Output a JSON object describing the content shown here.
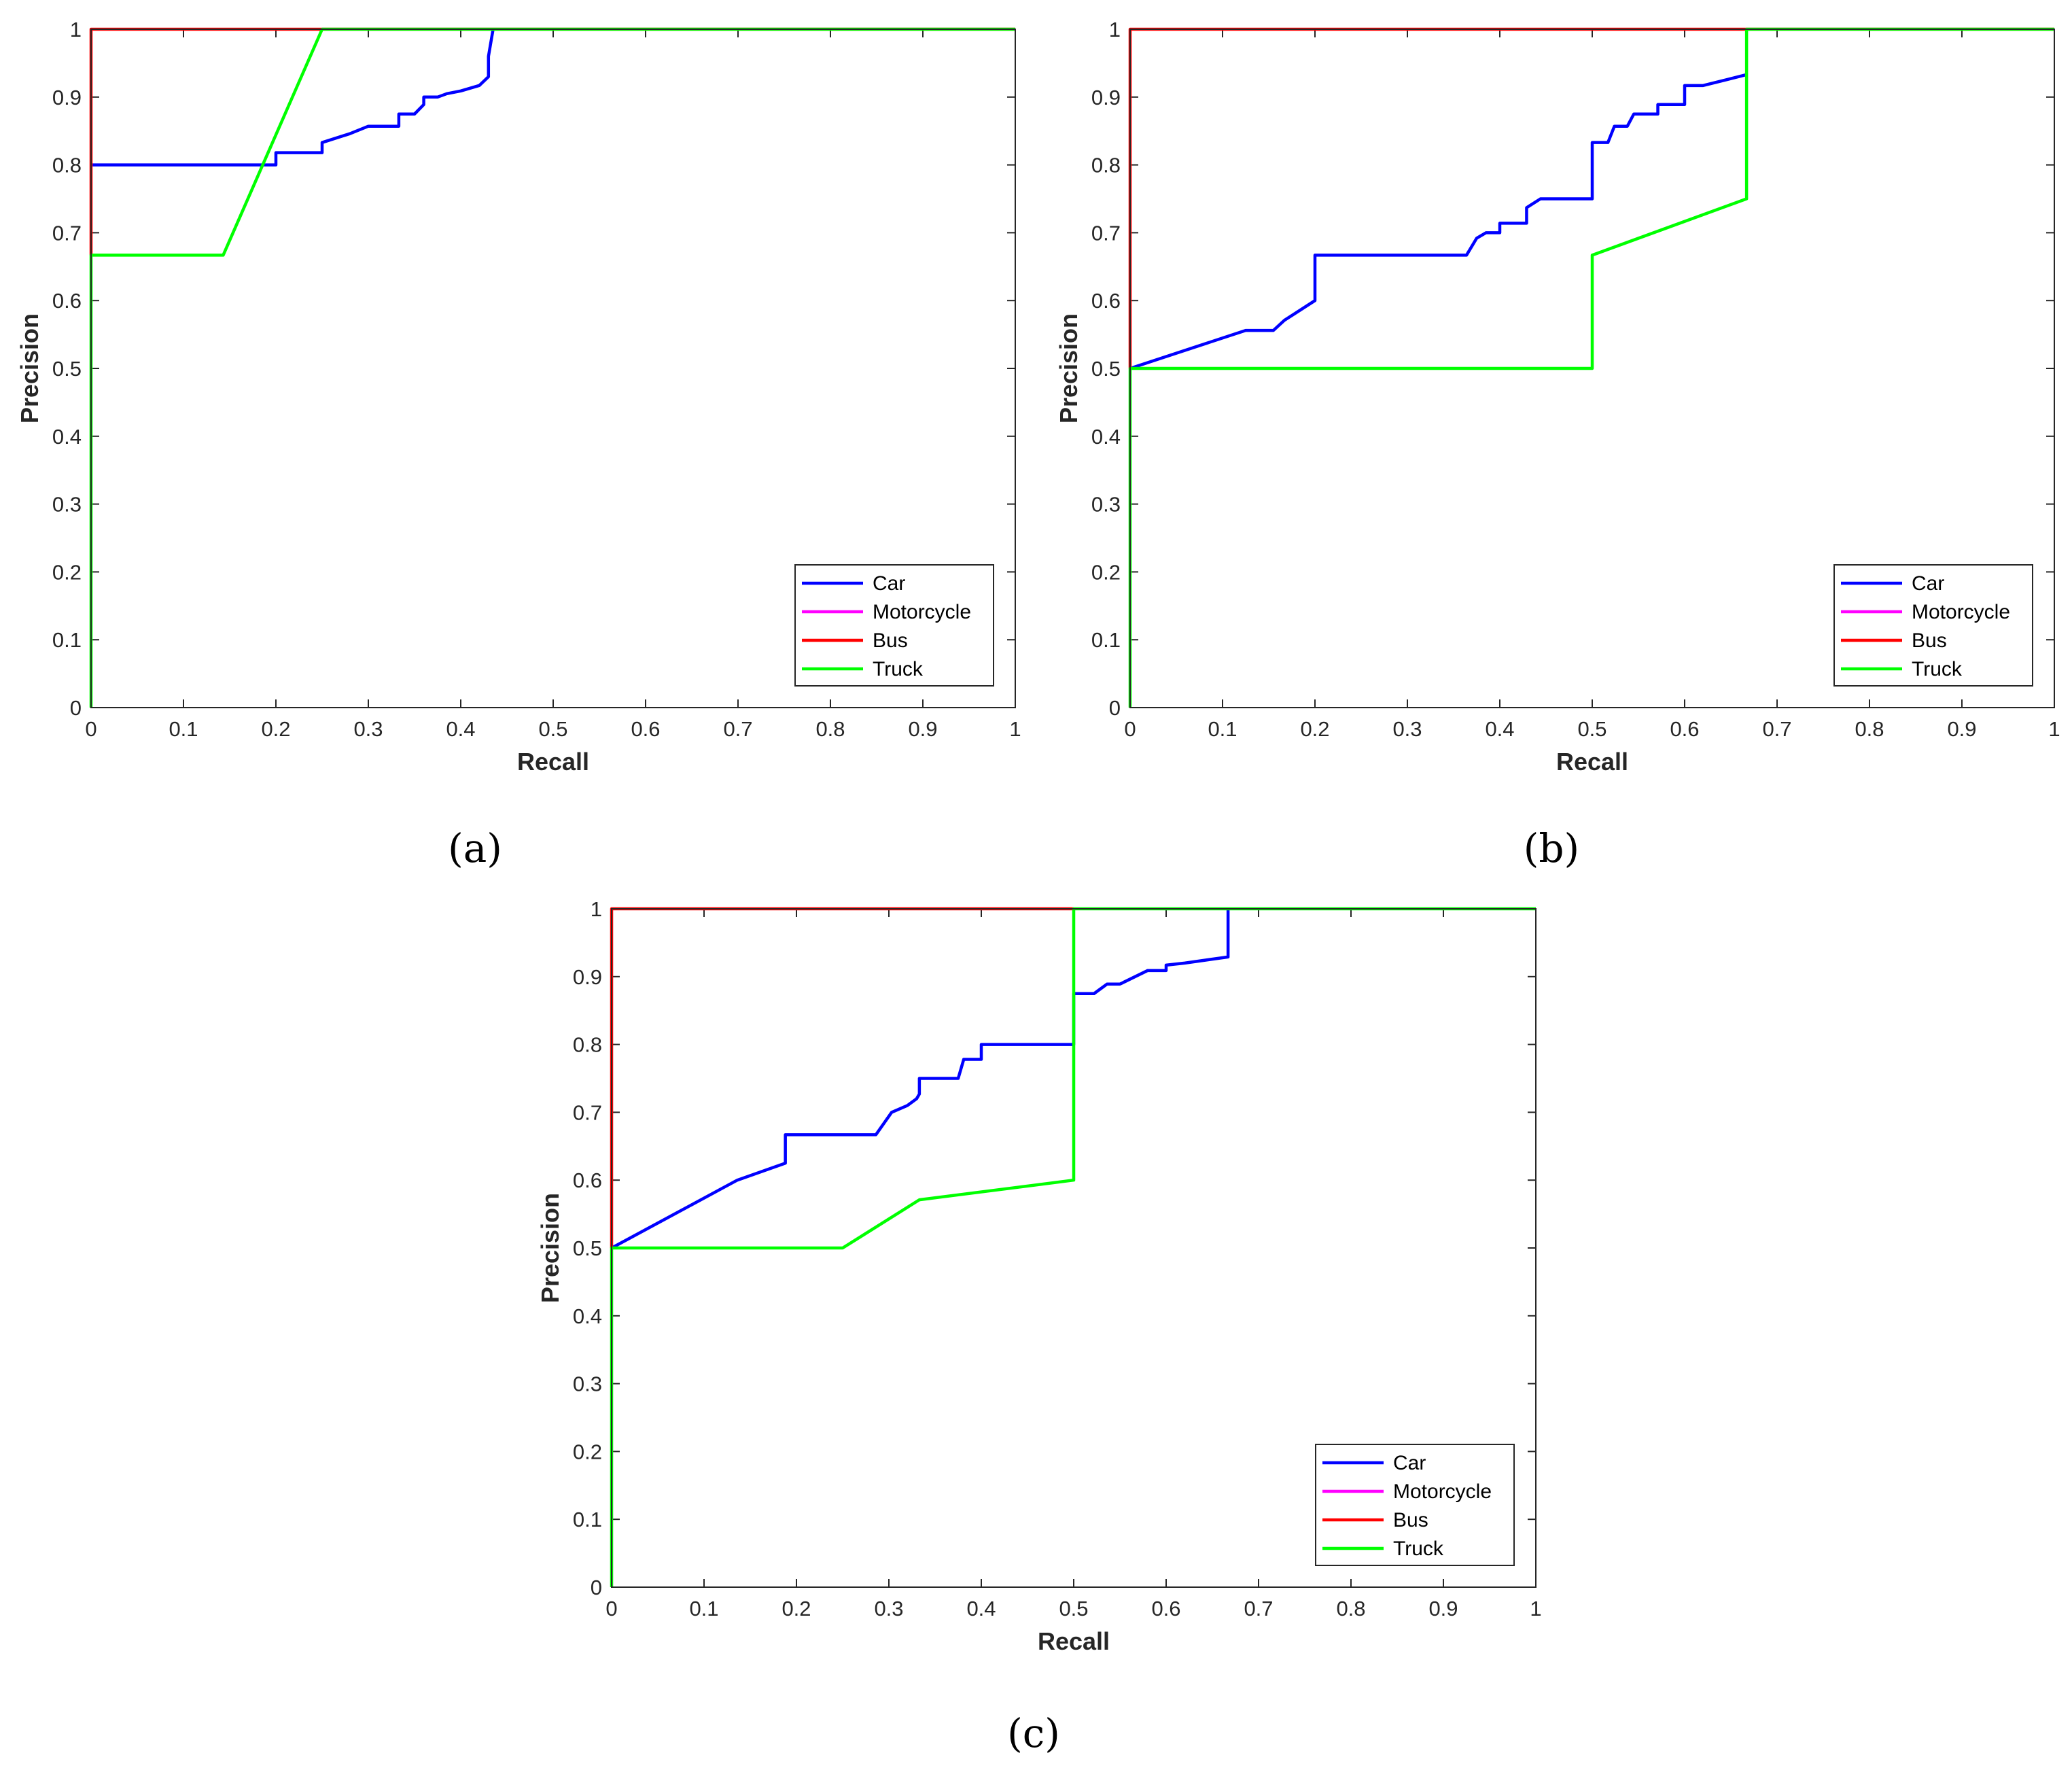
{
  "figure": {
    "panel_labels": [
      "(a)",
      "(b)",
      "(c)"
    ]
  },
  "chart_data": [
    {
      "type": "line",
      "panel": "(a)",
      "title": "",
      "xlabel": "Recall",
      "ylabel": "Precision",
      "xlim": [
        0,
        1
      ],
      "ylim": [
        0,
        1
      ],
      "xticks": [
        "0",
        "0.1",
        "0.2",
        "0.3",
        "0.4",
        "0.5",
        "0.6",
        "0.7",
        "0.8",
        "0.9",
        "1"
      ],
      "yticks": [
        "0",
        "0.1",
        "0.2",
        "0.3",
        "0.4",
        "0.5",
        "0.6",
        "0.7",
        "0.8",
        "0.9",
        "1"
      ],
      "grid": false,
      "legend_position": "bottom-right",
      "series": [
        {
          "name": "Car",
          "color": "#0000FF",
          "x": [
            0,
            0.19,
            0.2,
            0.2,
            0.25,
            0.25,
            0.28,
            0.3,
            0.333,
            0.333,
            0.35,
            0.36,
            0.36,
            0.375,
            0.385,
            0.4,
            0.41,
            0.42,
            0.43,
            0.43,
            0.435
          ],
          "y": [
            0.8,
            0.8,
            0.8,
            0.818,
            0.818,
            0.833,
            0.846,
            0.857,
            0.857,
            0.875,
            0.875,
            0.889,
            0.9,
            0.9,
            0.905,
            0.909,
            0.913,
            0.917,
            0.93,
            0.96,
            1.0
          ]
        },
        {
          "name": "Motorcycle",
          "color": "#FF00FF",
          "x": [],
          "y": []
        },
        {
          "name": "Bus",
          "color": "#FF0000",
          "x": [
            0,
            0,
            0.25,
            1.0
          ],
          "y": [
            0.667,
            1.0,
            1.0,
            1.0
          ]
        },
        {
          "name": "Truck",
          "color": "#00FF00",
          "x": [
            0,
            0,
            0.143,
            0.25,
            1.0
          ],
          "y": [
            0,
            0.667,
            0.667,
            1.0,
            1.0
          ]
        }
      ]
    },
    {
      "type": "line",
      "panel": "(b)",
      "title": "",
      "xlabel": "Recall",
      "ylabel": "Precision",
      "xlim": [
        0,
        1
      ],
      "ylim": [
        0,
        1
      ],
      "xticks": [
        "0",
        "0.1",
        "0.2",
        "0.3",
        "0.4",
        "0.5",
        "0.6",
        "0.7",
        "0.8",
        "0.9",
        "1"
      ],
      "yticks": [
        "0",
        "0.1",
        "0.2",
        "0.3",
        "0.4",
        "0.5",
        "0.6",
        "0.7",
        "0.8",
        "0.9",
        "1"
      ],
      "grid": false,
      "legend_position": "bottom-right",
      "series": [
        {
          "name": "Car",
          "color": "#0000FF",
          "x": [
            0,
            0.125,
            0.155,
            0.167,
            0.2,
            0.2,
            0.364,
            0.375,
            0.385,
            0.4,
            0.4,
            0.429,
            0.429,
            0.444,
            0.5,
            0.5,
            0.517,
            0.524,
            0.538,
            0.545,
            0.571,
            0.571,
            0.6,
            0.6,
            0.62,
            0.667
          ],
          "y": [
            0.5,
            0.556,
            0.556,
            0.571,
            0.6,
            0.667,
            0.667,
            0.692,
            0.7,
            0.7,
            0.714,
            0.714,
            0.737,
            0.75,
            0.75,
            0.833,
            0.833,
            0.857,
            0.857,
            0.875,
            0.875,
            0.889,
            0.889,
            0.917,
            0.917,
            0.933
          ]
        },
        {
          "name": "Motorcycle",
          "color": "#FF00FF",
          "x": [],
          "y": []
        },
        {
          "name": "Bus",
          "color": "#FF0000",
          "x": [
            0,
            0,
            1.0
          ],
          "y": [
            0.5,
            1.0,
            1.0
          ]
        },
        {
          "name": "Truck",
          "color": "#00FF00",
          "x": [
            0,
            0,
            0.5,
            0.5,
            0.667,
            0.667,
            1.0
          ],
          "y": [
            0,
            0.5,
            0.5,
            0.667,
            0.75,
            1.0,
            1.0
          ]
        }
      ]
    },
    {
      "type": "line",
      "panel": "(c)",
      "title": "",
      "xlabel": "Recall",
      "ylabel": "Precision",
      "xlim": [
        0,
        1
      ],
      "ylim": [
        0,
        1
      ],
      "xticks": [
        "0",
        "0.1",
        "0.2",
        "0.3",
        "0.4",
        "0.5",
        "0.6",
        "0.7",
        "0.8",
        "0.9",
        "1"
      ],
      "yticks": [
        "0",
        "0.1",
        "0.2",
        "0.3",
        "0.4",
        "0.5",
        "0.6",
        "0.7",
        "0.8",
        "0.9",
        "1"
      ],
      "grid": false,
      "legend_position": "bottom-right",
      "series": [
        {
          "name": "Car",
          "color": "#0000FF",
          "x": [
            0,
            0.136,
            0.188,
            0.188,
            0.286,
            0.303,
            0.32,
            0.33,
            0.333,
            0.333,
            0.375,
            0.381,
            0.4,
            0.4,
            0.5,
            0.5,
            0.522,
            0.536,
            0.55,
            0.58,
            0.6,
            0.6,
            0.62,
            0.667,
            0.667
          ],
          "y": [
            0.5,
            0.6,
            0.625,
            0.667,
            0.667,
            0.7,
            0.71,
            0.72,
            0.727,
            0.75,
            0.75,
            0.778,
            0.778,
            0.8,
            0.8,
            0.875,
            0.875,
            0.889,
            0.889,
            0.909,
            0.909,
            0.917,
            0.92,
            0.929,
            1.0
          ]
        },
        {
          "name": "Motorcycle",
          "color": "#FF00FF",
          "x": [],
          "y": []
        },
        {
          "name": "Bus",
          "color": "#FF0000",
          "x": [
            0,
            0,
            0.5
          ],
          "y": [
            0.5,
            1.0,
            1.0
          ]
        },
        {
          "name": "Truck",
          "color": "#00FF00",
          "x": [
            0,
            0,
            0.25,
            0.333,
            0.5,
            0.5,
            1.0
          ],
          "y": [
            0,
            0.5,
            0.5,
            0.571,
            0.6,
            1.0,
            1.0
          ]
        }
      ]
    }
  ]
}
